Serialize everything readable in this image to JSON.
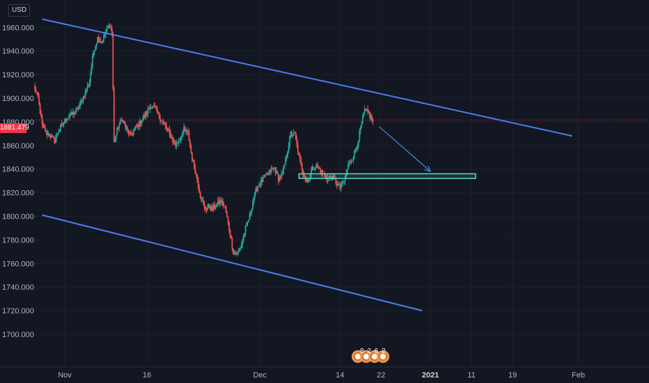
{
  "header": {
    "currency": "USD"
  },
  "last_price_label": "1881.479",
  "events": {
    "label": "8 2 6 2",
    "icon": "calendar-event-icon"
  },
  "colors": {
    "background": "#131722",
    "up": "#26a69a",
    "down": "#ef5350",
    "trendline": "#4a7ff0",
    "support_zone": "#5cd6c0",
    "arrow": "#3d8ee6",
    "last_price": "#f23645"
  },
  "chart_data": {
    "type": "candlestick",
    "ylim": [
      1690,
      1972
    ],
    "y_ticks": [
      "1960.000",
      "1940.000",
      "1920.000",
      "1900.000",
      "1880.000",
      "1860.000",
      "1840.000",
      "1820.000",
      "1800.000",
      "1780.000",
      "1760.000",
      "1740.000",
      "1720.000",
      "1700.000"
    ],
    "x_ticks": [
      {
        "label": "Nov",
        "bar": 0,
        "bold": false
      },
      {
        "label": "16",
        "bar": 40,
        "bold": false
      },
      {
        "label": "Dec",
        "bar": 95,
        "bold": false
      },
      {
        "label": "14",
        "bar": 134,
        "bold": false
      },
      {
        "label": "22",
        "bar": 154,
        "bold": false
      },
      {
        "label": "2021",
        "bar": 178,
        "bold": true
      },
      {
        "label": "11",
        "bar": 198,
        "bold": false
      },
      {
        "label": "19",
        "bar": 218,
        "bold": false
      },
      {
        "label": "Feb",
        "bar": 250,
        "bold": false
      }
    ],
    "bar_range": [
      -15,
      270
    ],
    "anchors": [
      [
        -15,
        1910
      ],
      [
        -13,
        1900
      ],
      [
        -11,
        1877
      ],
      [
        -9,
        1871
      ],
      [
        -7,
        1868
      ],
      [
        -5,
        1864
      ],
      [
        -3,
        1873
      ],
      [
        -1,
        1878
      ],
      [
        0,
        1881
      ],
      [
        2,
        1885
      ],
      [
        4,
        1887
      ],
      [
        6,
        1890
      ],
      [
        8,
        1897
      ],
      [
        10,
        1905
      ],
      [
        12,
        1914
      ],
      [
        14,
        1940
      ],
      [
        16,
        1951
      ],
      [
        18,
        1948
      ],
      [
        20,
        1956
      ],
      [
        22,
        1962
      ],
      [
        23,
        1955
      ],
      [
        24,
        1862
      ],
      [
        26,
        1876
      ],
      [
        28,
        1882
      ],
      [
        30,
        1874
      ],
      [
        32,
        1868
      ],
      [
        34,
        1873
      ],
      [
        36,
        1878
      ],
      [
        38,
        1883
      ],
      [
        40,
        1888
      ],
      [
        42,
        1894
      ],
      [
        44,
        1891
      ],
      [
        46,
        1884
      ],
      [
        48,
        1879
      ],
      [
        50,
        1873
      ],
      [
        52,
        1866
      ],
      [
        54,
        1860
      ],
      [
        56,
        1866
      ],
      [
        58,
        1873
      ],
      [
        60,
        1870
      ],
      [
        62,
        1849
      ],
      [
        64,
        1835
      ],
      [
        66,
        1818
      ],
      [
        68,
        1806
      ],
      [
        70,
        1808
      ],
      [
        72,
        1806
      ],
      [
        74,
        1810
      ],
      [
        76,
        1813
      ],
      [
        78,
        1807
      ],
      [
        80,
        1790
      ],
      [
        82,
        1770
      ],
      [
        84,
        1768
      ],
      [
        86,
        1776
      ],
      [
        88,
        1790
      ],
      [
        90,
        1800
      ],
      [
        92,
        1816
      ],
      [
        94,
        1826
      ],
      [
        96,
        1830
      ],
      [
        98,
        1834
      ],
      [
        100,
        1838
      ],
      [
        102,
        1841
      ],
      [
        104,
        1832
      ],
      [
        106,
        1835
      ],
      [
        108,
        1852
      ],
      [
        110,
        1870
      ],
      [
        112,
        1869
      ],
      [
        114,
        1850
      ],
      [
        116,
        1837
      ],
      [
        118,
        1829
      ],
      [
        120,
        1839
      ],
      [
        122,
        1843
      ],
      [
        124,
        1840
      ],
      [
        126,
        1835
      ],
      [
        128,
        1832
      ],
      [
        130,
        1833
      ],
      [
        132,
        1829
      ],
      [
        134,
        1824
      ],
      [
        136,
        1830
      ],
      [
        138,
        1843
      ],
      [
        140,
        1850
      ],
      [
        142,
        1858
      ],
      [
        144,
        1874
      ],
      [
        146,
        1890
      ],
      [
        148,
        1887
      ],
      [
        150,
        1880
      ]
    ],
    "overlays": {
      "upper_trendline": {
        "from": [
          -11,
          1967
        ],
        "to": [
          247,
          1868
        ]
      },
      "lower_trendline": {
        "from": [
          -11,
          1801
        ],
        "to": [
          174,
          1720
        ]
      },
      "support_zone": {
        "bars": [
          114,
          200
        ],
        "prices": [
          1832,
          1836
        ]
      },
      "projection_arrow": {
        "from": [
          153,
          1876
        ],
        "to": [
          178,
          1838
        ]
      },
      "last_price_line": 1881.479
    }
  }
}
